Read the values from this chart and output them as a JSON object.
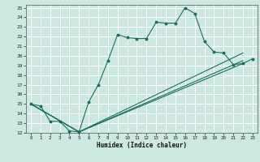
{
  "xlabel": "Humidex (Indice chaleur)",
  "bg_color": "#cce8e0",
  "line_color": "#1a7060",
  "grid_color": "#ffffff",
  "xlim": [
    -0.5,
    23.5
  ],
  "ylim": [
    12,
    25.3
  ],
  "xticks": [
    0,
    1,
    2,
    3,
    4,
    5,
    6,
    7,
    8,
    9,
    10,
    11,
    12,
    13,
    14,
    15,
    16,
    17,
    18,
    19,
    20,
    21,
    22,
    23
  ],
  "yticks": [
    12,
    13,
    14,
    15,
    16,
    17,
    18,
    19,
    20,
    21,
    22,
    23,
    24,
    25
  ],
  "main_line": {
    "x": [
      0,
      1,
      2,
      3,
      4,
      5,
      6,
      7,
      8,
      9,
      10,
      11,
      12,
      13,
      14,
      15,
      16,
      17,
      18,
      19,
      20,
      21,
      22,
      23
    ],
    "y": [
      15.0,
      14.8,
      13.2,
      13.2,
      12.2,
      12.1,
      15.2,
      17.0,
      19.5,
      22.2,
      21.9,
      21.8,
      21.8,
      23.5,
      23.4,
      23.4,
      25.0,
      24.4,
      21.5,
      20.4,
      20.3,
      19.1,
      19.2,
      19.7
    ]
  },
  "diag_lines": [
    {
      "x": [
        0,
        5,
        22
      ],
      "y": [
        15.0,
        12.1,
        19.2
      ]
    },
    {
      "x": [
        0,
        5,
        22
      ],
      "y": [
        15.0,
        12.1,
        19.5
      ]
    },
    {
      "x": [
        0,
        5,
        22
      ],
      "y": [
        15.0,
        12.1,
        20.3
      ]
    }
  ]
}
